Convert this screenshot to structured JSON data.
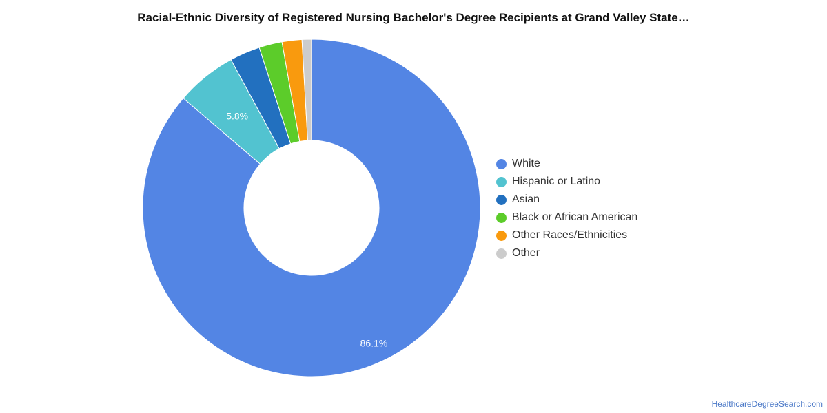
{
  "chart_data": {
    "type": "pie",
    "title": "Racial-Ethnic Diversity of Registered Nursing Bachelor's Degree Recipients at Grand Valley State…",
    "donut": true,
    "unit": "%",
    "categories": [
      "White",
      "Hispanic or Latino",
      "Asian",
      "Black or African American",
      "Other Races/Ethnicities",
      "Other"
    ],
    "values": [
      86.1,
      5.8,
      2.9,
      2.2,
      1.9,
      0.9
    ],
    "colors": [
      "#5385e4",
      "#52c3d0",
      "#2270bf",
      "#5ccc2a",
      "#f99a0e",
      "#cccccc"
    ],
    "data_labels": [
      "86.1%",
      "5.8%",
      "",
      "",
      "",
      ""
    ],
    "legend_position": "right"
  },
  "watermark": "HealthcareDegreeSearch.com"
}
